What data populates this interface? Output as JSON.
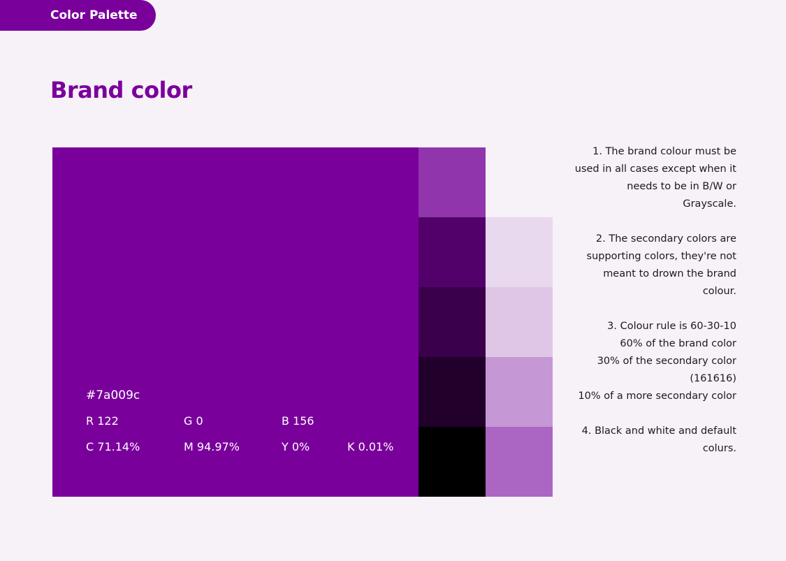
{
  "header": {
    "tab_label": "Color Palette"
  },
  "page": {
    "title": "Brand color"
  },
  "brand": {
    "color": "#7a009c",
    "hex_label": "#7a009c",
    "rgb": {
      "r": "R 122",
      "g": "G 0",
      "b": "B 156"
    },
    "cmyk": {
      "c": "C 71.14%",
      "m": "M 94.97%",
      "y": "Y 0%",
      "k": "K 0.01%"
    }
  },
  "shades": {
    "dark_column": [
      "#9035ac",
      "#52006a",
      "#3b004c",
      "#21002c",
      "#000000"
    ],
    "light_column": [
      "#e9d9ef",
      "#dfc6e7",
      "#c697d5",
      "#aa66c2"
    ]
  },
  "notes": [
    "1. The brand colour must be used in all cases except when it needs to be in B/W or Grayscale.",
    "2. The secondary colors are supporting colors, they're not meant to drown the brand colour.",
    "3. Colour rule is 60-30-10\n60% of the brand color\n30% of the secondary color (161616)\n10% of a more secondary color",
    "4. Black and white and default colurs."
  ]
}
